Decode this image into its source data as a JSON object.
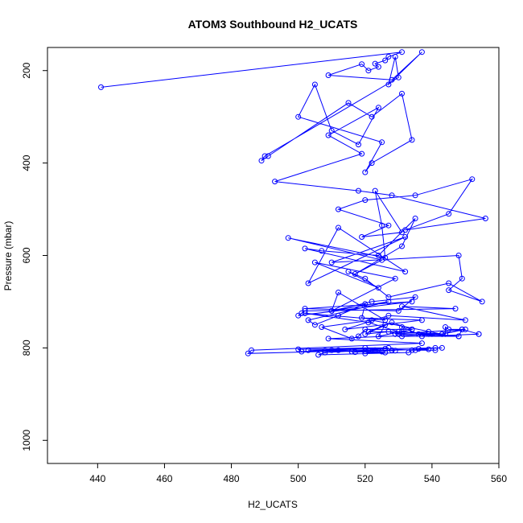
{
  "chart_data": {
    "type": "line",
    "title": "ATOM3 Southbound H2_UCATS",
    "xlabel": "H2_UCATS",
    "ylabel": "Pressure (mbar)",
    "xlim": [
      425,
      560
    ],
    "ylim": [
      1050,
      150
    ],
    "y_reversed": true,
    "x_ticks": [
      "440",
      "460",
      "480",
      "500",
      "520",
      "540",
      "560"
    ],
    "y_ticks": [
      "200",
      "400",
      "600",
      "800",
      "1000"
    ],
    "marker": "open-circle",
    "grid": false,
    "legend": "none",
    "series": [
      {
        "color": "#0000ff",
        "x": [
          441,
          531,
          527,
          526,
          523,
          524,
          521,
          519,
          509,
          528,
          537,
          527,
          529,
          530,
          490,
          489,
          491,
          515,
          522,
          531,
          534,
          522,
          520,
          525,
          500,
          505,
          510,
          518,
          524,
          509,
          519,
          493,
          518,
          528,
          556,
          532,
          545,
          552,
          535,
          520,
          512,
          527,
          519,
          531,
          523,
          525,
          526,
          497,
          525,
          517,
          531,
          535,
          524,
          507,
          502,
          532,
          512,
          503,
          532,
          510,
          548,
          549,
          545,
          555,
          545,
          527,
          520,
          515,
          524,
          505,
          529,
          510,
          522,
          535,
          530,
          502,
          534,
          500,
          501,
          502,
          547,
          531,
          550,
          527,
          514,
          537,
          519,
          520,
          512,
          505,
          503,
          527,
          510,
          512,
          526,
          502,
          521,
          530,
          544,
          544,
          545,
          549,
          548,
          530,
          527,
          520,
          528,
          534,
          524,
          526,
          521,
          531,
          540,
          548,
          531,
          531,
          536,
          539,
          537,
          554,
          554,
          549,
          543,
          550,
          539,
          529,
          534,
          520,
          518,
          516,
          507,
          522,
          543,
          509,
          537,
          486,
          485,
          521,
          508,
          506,
          533,
          534,
          541,
          535,
          526,
          516,
          510,
          501,
          500,
          520,
          527,
          503,
          541,
          543,
          536,
          539,
          528,
          520,
          512,
          508,
          526,
          520,
          525,
          517,
          523,
          529
        ],
        "y": [
          236,
          160,
          170,
          178,
          185,
          192,
          200,
          186,
          210,
          220,
          160,
          230,
          170,
          215,
          385,
          395,
          385,
          270,
          300,
          250,
          350,
          400,
          420,
          355,
          300,
          230,
          330,
          360,
          280,
          340,
          380,
          440,
          460,
          470,
          520,
          545,
          510,
          435,
          470,
          480,
          500,
          535,
          560,
          550,
          460,
          535,
          605,
          562,
          610,
          640,
          580,
          520,
          600,
          590,
          585,
          635,
          540,
          660,
          560,
          615,
          600,
          650,
          675,
          700,
          660,
          690,
          650,
          635,
          670,
          615,
          650,
          720,
          700,
          690,
          720,
          715,
          700,
          730,
          725,
          720,
          715,
          710,
          740,
          730,
          760,
          740,
          735,
          705,
          730,
          750,
          740,
          700,
          720,
          680,
          740,
          725,
          745,
          765,
          770,
          755,
          760,
          760,
          775,
          770,
          765,
          770,
          745,
          760,
          775,
          750,
          765,
          765,
          770,
          775,
          775,
          755,
          770,
          770,
          775,
          770,
          770,
          760,
          770,
          760,
          765,
          770,
          760,
          760,
          775,
          780,
          755,
          740,
          770,
          780,
          790,
          805,
          812,
          805,
          810,
          815,
          810,
          805,
          805,
          805,
          802,
          808,
          805,
          808,
          803,
          800,
          800,
          805,
          800,
          800,
          802,
          803,
          805,
          807,
          805,
          806,
          810,
          812,
          808,
          809,
          805,
          806
        ]
      }
    ]
  }
}
